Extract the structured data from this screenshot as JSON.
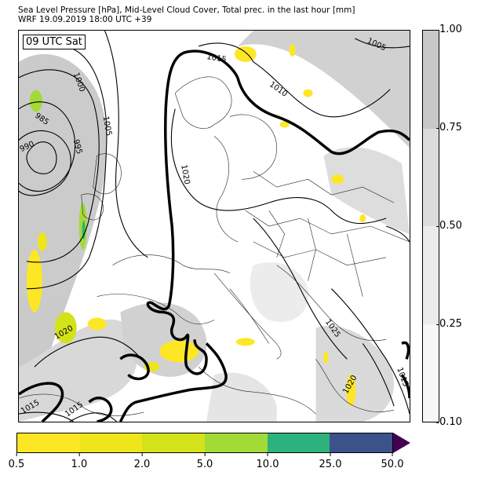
{
  "header": {
    "title_line1": "Sea Level Pressure [hPa], Mid-Level Cloud Cover, Total prec. in the last hour [mm]",
    "title_line2": "WRF 19.09.2019 18:00 UTC +39"
  },
  "time_label": "09 UTC Sat",
  "isobar_labels": [
    "1015",
    "1010",
    "1005",
    "1000",
    "985",
    "990",
    "995",
    "1005",
    "1020",
    "1020",
    "1025",
    "1020",
    "1015",
    "1015",
    "1015"
  ],
  "cloud_cover_colorbar": {
    "ticks": [
      "1.00",
      "0.75",
      "0.50",
      "0.25",
      "0.10"
    ],
    "colors": [
      "#c8c8c8",
      "#dcdcdc",
      "#ebebeb",
      "#f7f7f7"
    ]
  },
  "precip_colorbar": {
    "ticks": [
      "0.5",
      "1.0",
      "2.0",
      "5.0",
      "10.0",
      "25.0",
      "50.0"
    ],
    "colors": [
      "#fde725",
      "#eee51b",
      "#d4e21a",
      "#a2da37",
      "#2db27d",
      "#3b528b"
    ],
    "extend_color": "#440154"
  }
}
